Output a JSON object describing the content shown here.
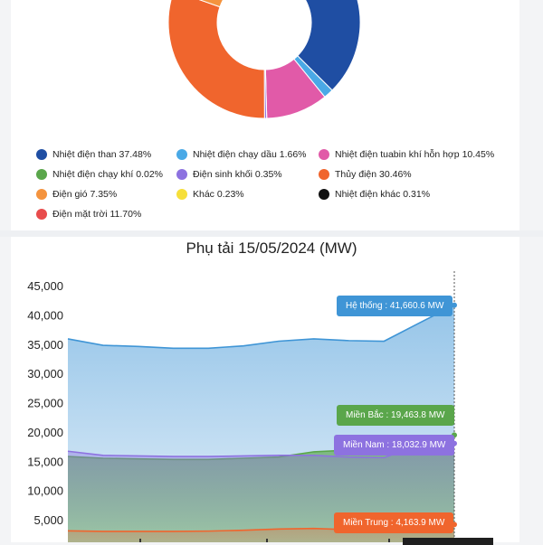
{
  "chart_data": [
    {
      "type": "pie",
      "title": "",
      "slices": [
        {
          "label": "Nhiệt điện than 37.48%",
          "value": 37.48,
          "color": "#1f4ea3"
        },
        {
          "label": "Nhiệt điện chạy dầu 1.66%",
          "value": 1.66,
          "color": "#4aa9e6"
        },
        {
          "label": "Nhiệt điện tuabin khí hỗn hợp 10.45%",
          "value": 10.45,
          "color": "#e15aa8"
        },
        {
          "label": "Nhiệt điện chạy khí 0.02%",
          "value": 0.02,
          "color": "#5aa64b"
        },
        {
          "label": "Điện sinh khối 0.35%",
          "value": 0.35,
          "color": "#8d72e0"
        },
        {
          "label": "Thủy điện 30.46%",
          "value": 30.46,
          "color": "#f0652d"
        },
        {
          "label": "Điện gió 7.35%",
          "value": 7.35,
          "color": "#f4933e"
        },
        {
          "label": "Khác 0.23%",
          "value": 0.23,
          "color": "#f6df3a"
        },
        {
          "label": "Nhiệt điện khác 0.31%",
          "value": 0.31,
          "color": "#111111"
        },
        {
          "label": "Điện mặt trời 11.70%",
          "value": 11.7,
          "color": "#e84c4c"
        }
      ]
    },
    {
      "type": "area",
      "title": "Phụ tải 15/05/2024 (MW)",
      "ylim": [
        0,
        45000
      ],
      "yticks": [
        "45,000",
        "40,000",
        "35,000",
        "30,000",
        "25,000",
        "20,000",
        "15,000",
        "10,000",
        "5,000"
      ],
      "series": [
        {
          "name": "Hệ thống",
          "values": [
            35900,
            34800,
            34600,
            34300,
            34300,
            34700,
            35500,
            35900,
            35600,
            35500,
            38600,
            41660.6
          ],
          "color": "#3f95d6"
        },
        {
          "name": "Miền Bắc",
          "values": [
            15800,
            15500,
            15400,
            15300,
            15300,
            15500,
            15700,
            16600,
            16900,
            16900,
            17600,
            19463.8
          ],
          "color": "#5aa64b"
        },
        {
          "name": "Miền Nam",
          "values": [
            16700,
            16000,
            15900,
            15800,
            15800,
            15900,
            16000,
            16000,
            15700,
            15600,
            17800,
            18032.9
          ],
          "color": "#8d72e0"
        },
        {
          "name": "Miền Trung",
          "values": [
            3100,
            3000,
            3000,
            3000,
            3050,
            3200,
            3400,
            3500,
            3300,
            3300,
            3900,
            4163.9
          ],
          "color": "#f0652d"
        }
      ],
      "tooltips": [
        {
          "text": "Hệ thống : 41,660.6 MW",
          "color": "#3f95d6"
        },
        {
          "text": "Miền Bắc : 19,463.8 MW",
          "color": "#5aa64b"
        },
        {
          "text": "Miền Nam : 18,032.9 MW",
          "color": "#8d72e0"
        },
        {
          "text": "Miền Trung : 4,163.9 MW",
          "color": "#f0652d"
        }
      ]
    }
  ]
}
